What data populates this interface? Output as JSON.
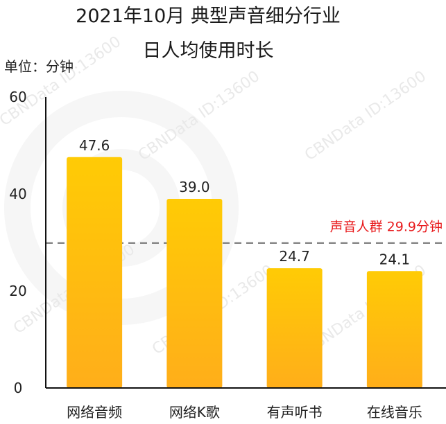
{
  "title_line1": "2021年10月 典型声音细分行业",
  "title_line2": "日人均使用时长",
  "unit_label": "单位：分钟",
  "watermark": "CBNData ID:13600",
  "colors": {
    "bar_top": "#FFCB05",
    "bar_bottom": "#FFAE1A",
    "reference": "#E8191B",
    "dash": "#888888",
    "axis": "#111111"
  },
  "chart_data": {
    "type": "bar",
    "title": "2021年10月 典型声音细分行业 日人均使用时长",
    "ylabel": "单位：分钟",
    "categories": [
      "网络音频",
      "网络K歌",
      "有声听书",
      "在线音乐"
    ],
    "values": [
      47.6,
      39.0,
      24.7,
      24.1
    ],
    "value_labels": [
      "47.6",
      "39.0",
      "24.7",
      "24.1"
    ],
    "ylim": [
      0,
      60
    ],
    "yticks": [
      0,
      20,
      40,
      60
    ],
    "reference_line": {
      "value": 29.9,
      "label": "声音人群 29.9分钟"
    },
    "grid": false
  }
}
